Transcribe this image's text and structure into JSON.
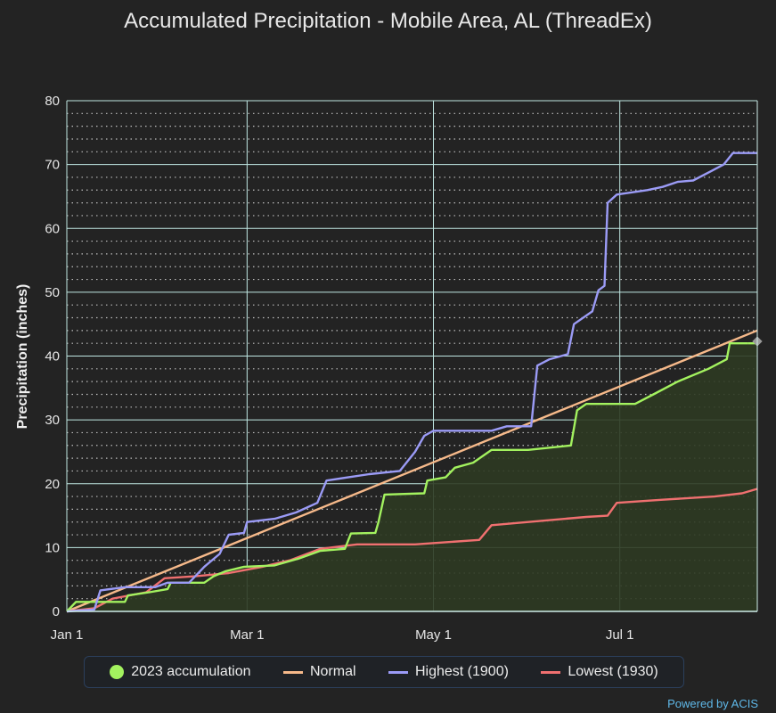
{
  "chart_data": {
    "type": "line",
    "title": "Accumulated Precipitation - Mobile Area, AL (ThreadEx)",
    "xlabel": "",
    "ylabel": "Precipitation (inches)",
    "ylim": [
      0,
      80
    ],
    "yticks": [
      0,
      10,
      20,
      30,
      40,
      50,
      60,
      70,
      80
    ],
    "xlim": [
      "2023-01-01",
      "2023-08-15"
    ],
    "xticks": [
      {
        "date": "2023-01-01",
        "label": "Jan 1"
      },
      {
        "date": "2023-03-01",
        "label": "Mar 1"
      },
      {
        "date": "2023-05-01",
        "label": "May 1"
      },
      {
        "date": "2023-07-01",
        "label": "Jul 1"
      }
    ],
    "grid": true,
    "legend_position": "bottom",
    "series": [
      {
        "name": "2023 accumulation",
        "color": "#a3f25f",
        "fill": "#2d3a22",
        "marker": "circle",
        "points": [
          [
            "2023-01-01",
            0
          ],
          [
            "2023-01-04",
            1.5
          ],
          [
            "2023-01-20",
            1.5
          ],
          [
            "2023-01-21",
            2.5
          ],
          [
            "2023-01-28",
            3
          ],
          [
            "2023-02-03",
            3.5
          ],
          [
            "2023-02-04",
            4.5
          ],
          [
            "2023-02-15",
            4.5
          ],
          [
            "2023-02-18",
            5.5
          ],
          [
            "2023-02-22",
            6.3
          ],
          [
            "2023-02-28",
            7
          ],
          [
            "2023-03-10",
            7.2
          ],
          [
            "2023-03-18",
            8.3
          ],
          [
            "2023-03-25",
            9.5
          ],
          [
            "2023-04-02",
            9.8
          ],
          [
            "2023-04-04",
            12.2
          ],
          [
            "2023-04-12",
            12.3
          ],
          [
            "2023-04-13",
            14
          ],
          [
            "2023-04-15",
            18.3
          ],
          [
            "2023-04-28",
            18.5
          ],
          [
            "2023-04-29",
            20.5
          ],
          [
            "2023-05-05",
            21
          ],
          [
            "2023-05-08",
            22.5
          ],
          [
            "2023-05-14",
            23.3
          ],
          [
            "2023-05-20",
            25.3
          ],
          [
            "2023-06-01",
            25.3
          ],
          [
            "2023-06-15",
            26
          ],
          [
            "2023-06-17",
            31.5
          ],
          [
            "2023-06-20",
            32.5
          ],
          [
            "2023-07-06",
            32.5
          ],
          [
            "2023-07-12",
            34
          ],
          [
            "2023-07-20",
            36
          ],
          [
            "2023-07-30",
            38
          ],
          [
            "2023-08-05",
            39.5
          ],
          [
            "2023-08-06",
            42
          ],
          [
            "2023-08-12",
            42
          ]
        ]
      },
      {
        "name": "Normal",
        "color": "#f6b98a",
        "points": [
          [
            "2023-01-01",
            0
          ],
          [
            "2023-08-15",
            44
          ]
        ]
      },
      {
        "name": "Highest (1900)",
        "color": "#9b9bf6",
        "points": [
          [
            "2023-01-01",
            0
          ],
          [
            "2023-01-10",
            0.3
          ],
          [
            "2023-01-12",
            3.3
          ],
          [
            "2023-01-20",
            3.8
          ],
          [
            "2023-01-30",
            3.8
          ],
          [
            "2023-02-03",
            4.5
          ],
          [
            "2023-02-10",
            4.5
          ],
          [
            "2023-02-15",
            7
          ],
          [
            "2023-02-20",
            9
          ],
          [
            "2023-02-23",
            12
          ],
          [
            "2023-02-28",
            12.3
          ],
          [
            "2023-03-01",
            14
          ],
          [
            "2023-03-10",
            14.5
          ],
          [
            "2023-03-17",
            15.5
          ],
          [
            "2023-03-24",
            17
          ],
          [
            "2023-03-27",
            20.5
          ],
          [
            "2023-04-10",
            21.5
          ],
          [
            "2023-04-20",
            22
          ],
          [
            "2023-04-25",
            25
          ],
          [
            "2023-04-28",
            27.5
          ],
          [
            "2023-05-01",
            28.3
          ],
          [
            "2023-05-20",
            28.3
          ],
          [
            "2023-05-25",
            29
          ],
          [
            "2023-06-02",
            29
          ],
          [
            "2023-06-04",
            38.5
          ],
          [
            "2023-06-08",
            39.5
          ],
          [
            "2023-06-14",
            40.3
          ],
          [
            "2023-06-16",
            45
          ],
          [
            "2023-06-22",
            47
          ],
          [
            "2023-06-24",
            50.3
          ],
          [
            "2023-06-26",
            51
          ],
          [
            "2023-06-27",
            64
          ],
          [
            "2023-06-30",
            65.3
          ],
          [
            "2023-07-10",
            66
          ],
          [
            "2023-07-15",
            66.5
          ],
          [
            "2023-07-20",
            67.3
          ],
          [
            "2023-07-25",
            67.5
          ],
          [
            "2023-07-31",
            69
          ],
          [
            "2023-08-04",
            70
          ],
          [
            "2023-08-07",
            71.8
          ],
          [
            "2023-08-15",
            71.8
          ]
        ]
      },
      {
        "name": "Lowest (1930)",
        "color": "#f07070",
        "points": [
          [
            "2023-01-01",
            0
          ],
          [
            "2023-01-10",
            0.5
          ],
          [
            "2023-01-16",
            2
          ],
          [
            "2023-01-27",
            3
          ],
          [
            "2023-02-02",
            5.2
          ],
          [
            "2023-02-12",
            5.5
          ],
          [
            "2023-02-23",
            6
          ],
          [
            "2023-03-06",
            7
          ],
          [
            "2023-03-15",
            8
          ],
          [
            "2023-03-25",
            9.8
          ],
          [
            "2023-04-06",
            10.5
          ],
          [
            "2023-04-25",
            10.5
          ],
          [
            "2023-05-16",
            11.2
          ],
          [
            "2023-05-20",
            13.5
          ],
          [
            "2023-06-01",
            14
          ],
          [
            "2023-06-20",
            14.8
          ],
          [
            "2023-06-27",
            15
          ],
          [
            "2023-06-30",
            17
          ],
          [
            "2023-07-15",
            17.5
          ],
          [
            "2023-08-01",
            18
          ],
          [
            "2023-08-10",
            18.5
          ],
          [
            "2023-08-15",
            19.2
          ]
        ]
      }
    ]
  },
  "legend": {
    "item1": "2023 accumulation",
    "item2": "Normal",
    "item3": "Highest (1900)",
    "item4": "Lowest (1930)"
  },
  "credit": "Powered by ACIS"
}
